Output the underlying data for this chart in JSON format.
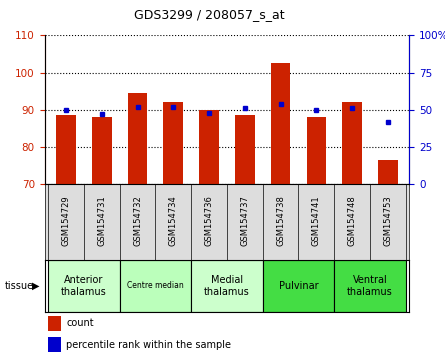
{
  "title": "GDS3299 / 208057_s_at",
  "samples": [
    "GSM154729",
    "GSM154731",
    "GSM154732",
    "GSM154734",
    "GSM154736",
    "GSM154737",
    "GSM154738",
    "GSM154741",
    "GSM154748",
    "GSM154753"
  ],
  "counts": [
    88.5,
    88.0,
    94.5,
    92.0,
    90.0,
    88.5,
    102.5,
    88.0,
    92.0,
    76.5
  ],
  "percentile_ranks": [
    50,
    47,
    52,
    52,
    48,
    51,
    54,
    50,
    51,
    42
  ],
  "tissues": [
    {
      "label": "Anterior\nthalamus",
      "start": 0,
      "end": 2,
      "color": "#ccffcc",
      "fontsize": 7
    },
    {
      "label": "Centre median",
      "start": 2,
      "end": 4,
      "color": "#bbffbb",
      "fontsize": 5.5
    },
    {
      "label": "Medial\nthalamus",
      "start": 4,
      "end": 6,
      "color": "#ccffcc",
      "fontsize": 7
    },
    {
      "label": "Pulvinar",
      "start": 6,
      "end": 8,
      "color": "#44dd44",
      "fontsize": 7
    },
    {
      "label": "Ventral\nthalamus",
      "start": 8,
      "end": 10,
      "color": "#44dd44",
      "fontsize": 7
    }
  ],
  "ylim_left": [
    70,
    110
  ],
  "ylim_right": [
    0,
    100
  ],
  "yticks_left": [
    70,
    80,
    90,
    100,
    110
  ],
  "yticks_right": [
    0,
    25,
    50,
    75,
    100
  ],
  "bar_color": "#cc2200",
  "dot_color": "#0000cc",
  "bar_width": 0.55,
  "tick_label_color_left": "#cc2200",
  "tick_label_color_right": "#0000cc",
  "gsm_band_color": "#dddddd",
  "grid_color": "black",
  "grid_linestyle": "dotted"
}
